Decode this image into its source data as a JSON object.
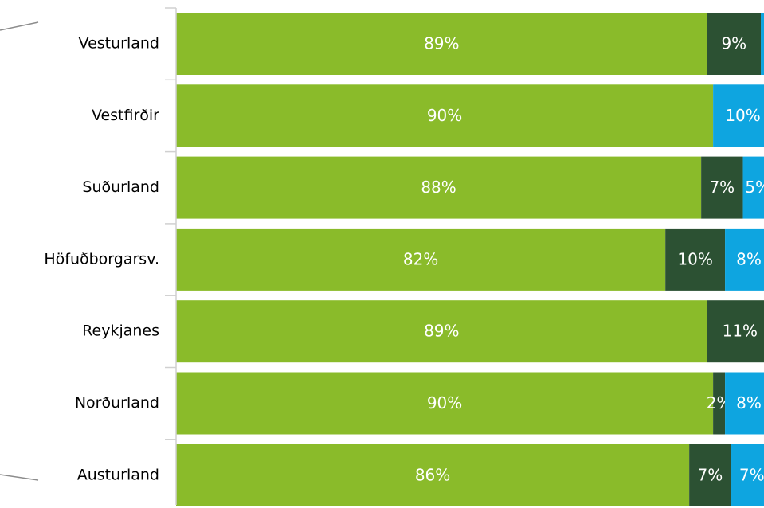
{
  "chart_data": {
    "type": "stacked-barh",
    "categories": [
      "Vesturland",
      "Vestfirðir",
      "Suðurland",
      "Höfuðborgarsv.",
      "Reykjanes",
      "Norðurland",
      "Austurland"
    ],
    "xlim": [
      0,
      100
    ],
    "series": [
      {
        "color": "#8abb2a",
        "values": [
          89,
          90,
          88,
          82,
          89,
          90,
          86
        ],
        "value_labels": [
          "89%",
          "90%",
          "88%",
          "82%",
          "89%",
          "90%",
          "86%"
        ]
      },
      {
        "color": "#2c5133",
        "values": [
          9,
          0,
          7,
          10,
          11,
          2,
          7
        ],
        "value_labels": [
          "9%",
          null,
          "7%",
          "10%",
          "11%",
          "2%",
          "7%"
        ]
      },
      {
        "color": "#0ea5e0",
        "values": [
          2,
          10,
          5,
          8,
          0,
          8,
          7
        ],
        "value_labels": [
          null,
          "10%",
          "5%",
          "8%",
          null,
          "8%",
          "7%"
        ]
      }
    ]
  }
}
